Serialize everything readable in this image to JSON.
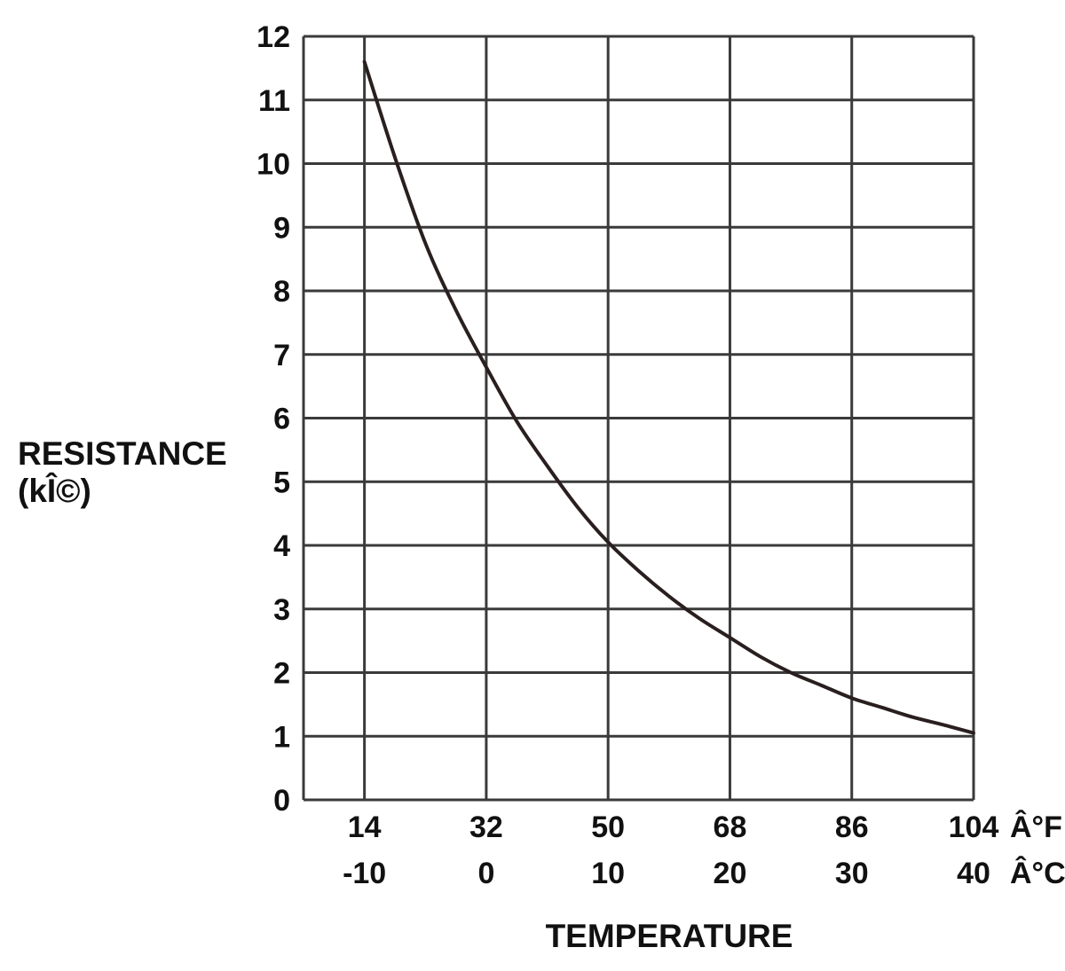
{
  "chart_data": {
    "type": "line",
    "xlabel": "TEMPERATURE",
    "ylabel": "RESISTANCE",
    "ylabel_unit": "(kÎ©)",
    "x_unit_f": "Â°F",
    "x_unit_c": "Â°C",
    "x_ticks_f": [
      "14",
      "32",
      "50",
      "68",
      "86",
      "104"
    ],
    "x_ticks_c": [
      "-10",
      "0",
      "10",
      "20",
      "30",
      "40"
    ],
    "y_ticks": [
      "12",
      "11",
      "10",
      "9",
      "8",
      "7",
      "6",
      "5",
      "4",
      "3",
      "2",
      "1",
      "0"
    ],
    "xlim_c": [
      -15,
      40
    ],
    "ylim": [
      0,
      12
    ],
    "grid": true,
    "series": [
      {
        "x": [
          -10,
          -7.5,
          -5,
          -2.5,
          0,
          2.5,
          5,
          7.5,
          10,
          12.5,
          15,
          17.5,
          20,
          22.5,
          25,
          27.5,
          30,
          32.5,
          35,
          37.5,
          40
        ],
        "y": [
          11.6,
          10.1,
          8.75,
          7.7,
          6.8,
          5.95,
          5.25,
          4.6,
          4.05,
          3.6,
          3.2,
          2.85,
          2.55,
          2.25,
          2.0,
          1.8,
          1.6,
          1.45,
          1.3,
          1.18,
          1.05
        ],
        "color": "#2a1f1f"
      }
    ]
  }
}
